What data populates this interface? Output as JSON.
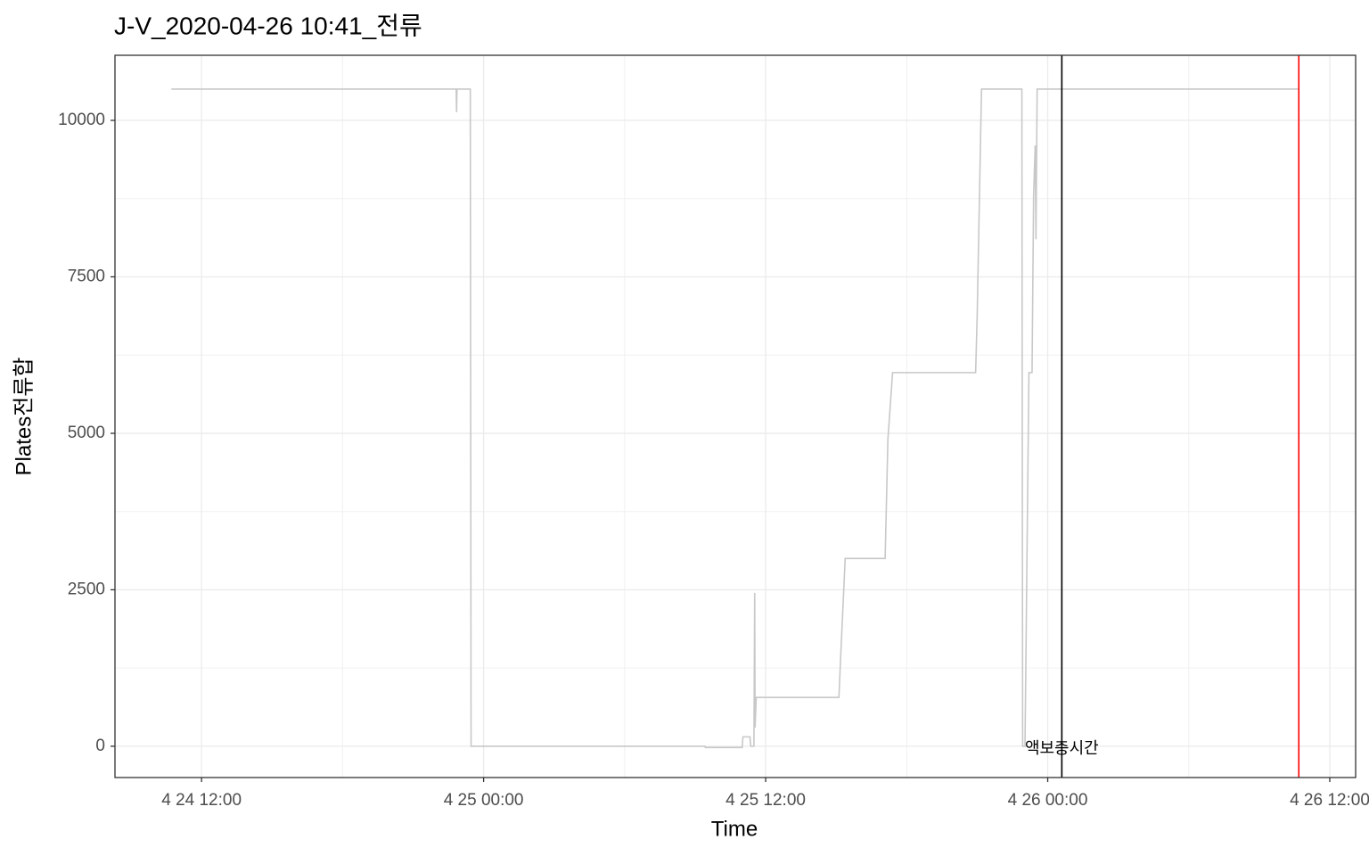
{
  "chart_data": {
    "type": "line",
    "title": "J-V_2020-04-26 10:41_전류",
    "x_label": "Time",
    "y_label": "Plates전류합",
    "x": [
      "4 24 10:43",
      "4 24 22:50",
      "4 24 22:51",
      "4 24 22:52",
      "4 24 23:26",
      "4 24 23:28",
      "4 25 09:25",
      "4 25 09:26",
      "4 25 11:00",
      "4 25 11:02",
      "4 25 11:20",
      "4 25 11:22",
      "4 25 11:30",
      "4 25 11:32",
      "4 25 11:33",
      "4 25 11:36",
      "4 25 15:07",
      "4 25 15:12",
      "4 25 15:23",
      "4 25 17:05",
      "4 25 17:12",
      "4 25 17:24",
      "4 25 20:56",
      "4 25 21:00",
      "4 25 21:11",
      "4 25 22:54",
      "4 25 22:56",
      "4 25 23:02",
      "4 25 23:12",
      "4 25 23:20",
      "4 25 23:24",
      "4 25 23:28",
      "4 25 23:30",
      "4 25 23:33",
      "4 26 10:41"
    ],
    "series": [
      {
        "color": "#c8c8c8",
        "values": [
          10500,
          10500,
          10130,
          10500,
          10500,
          0,
          0,
          -20,
          -20,
          150,
          150,
          0,
          0,
          2450,
          300,
          780,
          780,
          1500,
          3000,
          3000,
          4900,
          5970,
          5970,
          6900,
          10500,
          10500,
          0,
          0,
          5970,
          5970,
          8800,
          9600,
          8100,
          10500,
          10500
        ]
      }
    ],
    "xlim": [
      "4 24 08:19",
      "4 26 13:06"
    ],
    "xticks": [
      "4 24 12:00",
      "4 25 00:00",
      "4 25 12:00",
      "4 26 00:00",
      "4 26 12:00"
    ],
    "ylim": [
      -500,
      11040
    ],
    "yticks": [
      0,
      2500,
      5000,
      7500,
      10000
    ],
    "grid": true,
    "vlines": [
      {
        "x": "4 26 00:36",
        "color": "#000000"
      },
      {
        "x": "4 26 10:41",
        "color": "#ff0000"
      }
    ],
    "annotations": [
      {
        "text": "액보충시간",
        "x": "4 26 00:36",
        "y": -50
      }
    ]
  }
}
